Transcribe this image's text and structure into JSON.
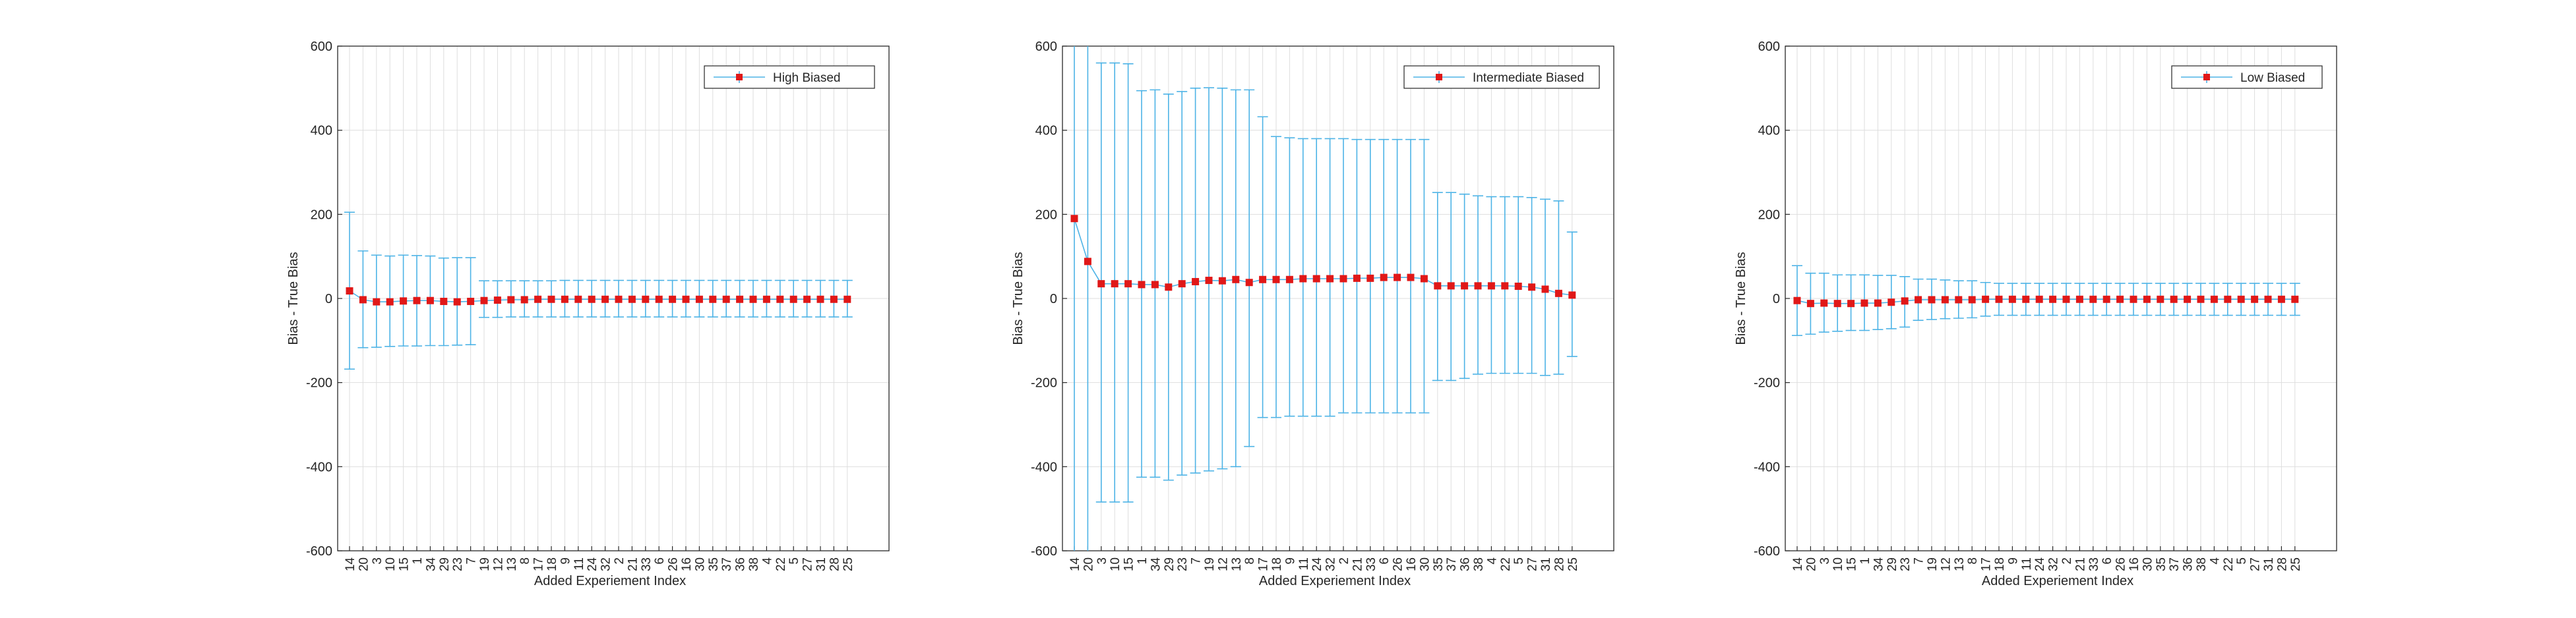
{
  "chart_data": [
    {
      "type": "errorbar",
      "title": "",
      "xlabel": "Added Experiement Index",
      "ylabel": "Bias - True Bias",
      "ylim": [
        -600,
        600
      ],
      "yticks": [
        -600,
        -400,
        -200,
        0,
        200,
        400,
        600
      ],
      "grid": true,
      "legend_position": "top-right",
      "categories": [
        "14",
        "20",
        "3",
        "10",
        "15",
        "1",
        "34",
        "29",
        "23",
        "7",
        "19",
        "12",
        "13",
        "8",
        "17",
        "18",
        "9",
        "11",
        "24",
        "32",
        "2",
        "21",
        "33",
        "6",
        "26",
        "16",
        "30",
        "35",
        "37",
        "36",
        "38",
        "4",
        "22",
        "5",
        "27",
        "31",
        "28",
        "25"
      ],
      "series": [
        {
          "name": "High Biased",
          "values": [
            18,
            -3,
            -8,
            -8,
            -6,
            -5,
            -5,
            -7,
            -8,
            -7,
            -5,
            -4,
            -3,
            -3,
            -2,
            -2,
            -2,
            -2,
            -2,
            -2,
            -2,
            -2,
            -2,
            -2,
            -2,
            -2,
            -2,
            -2,
            -2,
            -2,
            -2,
            -2,
            -2,
            -2,
            -2,
            -2,
            -2,
            -2
          ],
          "lower": [
            -168,
            -117,
            -116,
            -114,
            -113,
            -113,
            -112,
            -112,
            -111,
            -110,
            -45,
            -45,
            -44,
            -44,
            -44,
            -44,
            -44,
            -44,
            -44,
            -44,
            -44,
            -44,
            -44,
            -44,
            -44,
            -44,
            -44,
            -44,
            -44,
            -44,
            -44,
            -44,
            -44,
            -44,
            -44,
            -44,
            -44,
            -44
          ],
          "upper": [
            205,
            113,
            103,
            101,
            103,
            102,
            101,
            96,
            97,
            97,
            42,
            42,
            42,
            42,
            42,
            42,
            43,
            43,
            43,
            43,
            43,
            43,
            43,
            43,
            43,
            43,
            43,
            43,
            43,
            43,
            43,
            43,
            43,
            43,
            43,
            43,
            43,
            43
          ]
        }
      ]
    },
    {
      "type": "errorbar",
      "title": "",
      "xlabel": "Added Experiement Index",
      "ylabel": "Bias - True Bias",
      "ylim": [
        -600,
        600
      ],
      "yticks": [
        -600,
        -400,
        -200,
        0,
        200,
        400,
        600
      ],
      "grid": true,
      "legend_position": "top-right",
      "categories": [
        "14",
        "20",
        "3",
        "10",
        "15",
        "1",
        "34",
        "29",
        "23",
        "7",
        "19",
        "12",
        "13",
        "8",
        "17",
        "18",
        "9",
        "11",
        "24",
        "32",
        "2",
        "21",
        "33",
        "6",
        "26",
        "16",
        "30",
        "35",
        "37",
        "36",
        "38",
        "4",
        "22",
        "5",
        "27",
        "31",
        "28",
        "25"
      ],
      "series": [
        {
          "name": "Intermediate Biased",
          "values": [
            190,
            88,
            35,
            35,
            35,
            33,
            33,
            27,
            35,
            40,
            43,
            42,
            45,
            38,
            45,
            45,
            45,
            47,
            47,
            47,
            47,
            48,
            48,
            50,
            50,
            50,
            47,
            30,
            30,
            30,
            30,
            30,
            30,
            29,
            27,
            22,
            12,
            8
          ],
          "lower": [
            -600,
            -600,
            -484,
            -484,
            -484,
            -425,
            -425,
            -432,
            -420,
            -415,
            -410,
            -405,
            -400,
            -352,
            -283,
            -283,
            -280,
            -280,
            -280,
            -280,
            -272,
            -272,
            -272,
            -272,
            -272,
            -272,
            -272,
            -195,
            -195,
            -190,
            -180,
            -178,
            -178,
            -178,
            -178,
            -183,
            -180,
            -138
          ],
          "upper": [
            600,
            600,
            560,
            560,
            558,
            494,
            496,
            486,
            492,
            500,
            501,
            500,
            496,
            496,
            432,
            385,
            382,
            380,
            380,
            380,
            380,
            378,
            378,
            378,
            378,
            378,
            378,
            252,
            252,
            248,
            244,
            242,
            242,
            242,
            240,
            236,
            232,
            158
          ]
        }
      ]
    },
    {
      "type": "errorbar",
      "title": "",
      "xlabel": "Added Experiement Index",
      "ylabel": "Bias - True Bias",
      "ylim": [
        -600,
        600
      ],
      "yticks": [
        -600,
        -400,
        -200,
        0,
        200,
        400,
        600
      ],
      "grid": true,
      "legend_position": "top-right",
      "categories": [
        "14",
        "20",
        "3",
        "10",
        "15",
        "1",
        "34",
        "29",
        "23",
        "7",
        "19",
        "12",
        "13",
        "8",
        "17",
        "18",
        "9",
        "11",
        "24",
        "32",
        "2",
        "21",
        "33",
        "6",
        "26",
        "16",
        "30",
        "35",
        "37",
        "36",
        "38",
        "4",
        "22",
        "5",
        "27",
        "31",
        "28",
        "25"
      ],
      "series": [
        {
          "name": "Low Biased",
          "values": [
            -5,
            -12,
            -11,
            -12,
            -12,
            -11,
            -11,
            -9,
            -6,
            -3,
            -3,
            -3,
            -3,
            -3,
            -2,
            -2,
            -2,
            -2,
            -2,
            -2,
            -2,
            -2,
            -2,
            -2,
            -2,
            -2,
            -2,
            -2,
            -2,
            -2,
            -2,
            -2,
            -2,
            -2,
            -2,
            -2,
            -2,
            -2
          ],
          "lower": [
            -88,
            -85,
            -80,
            -78,
            -76,
            -76,
            -74,
            -72,
            -68,
            -52,
            -50,
            -48,
            -47,
            -46,
            -42,
            -40,
            -40,
            -40,
            -40,
            -40,
            -40,
            -40,
            -40,
            -40,
            -40,
            -40,
            -40,
            -40,
            -40,
            -40,
            -40,
            -40,
            -40,
            -40,
            -40,
            -40,
            -40,
            -40
          ],
          "upper": [
            78,
            60,
            60,
            56,
            56,
            56,
            55,
            55,
            52,
            46,
            46,
            44,
            42,
            42,
            38,
            36,
            36,
            36,
            36,
            36,
            36,
            36,
            36,
            36,
            36,
            36,
            36,
            36,
            36,
            36,
            36,
            36,
            36,
            36,
            36,
            36,
            36,
            36
          ]
        }
      ]
    }
  ],
  "colors": {
    "errorbar": "#4db3e6",
    "marker": "#e01818",
    "axis": "#262626",
    "grid": "#dedede"
  }
}
